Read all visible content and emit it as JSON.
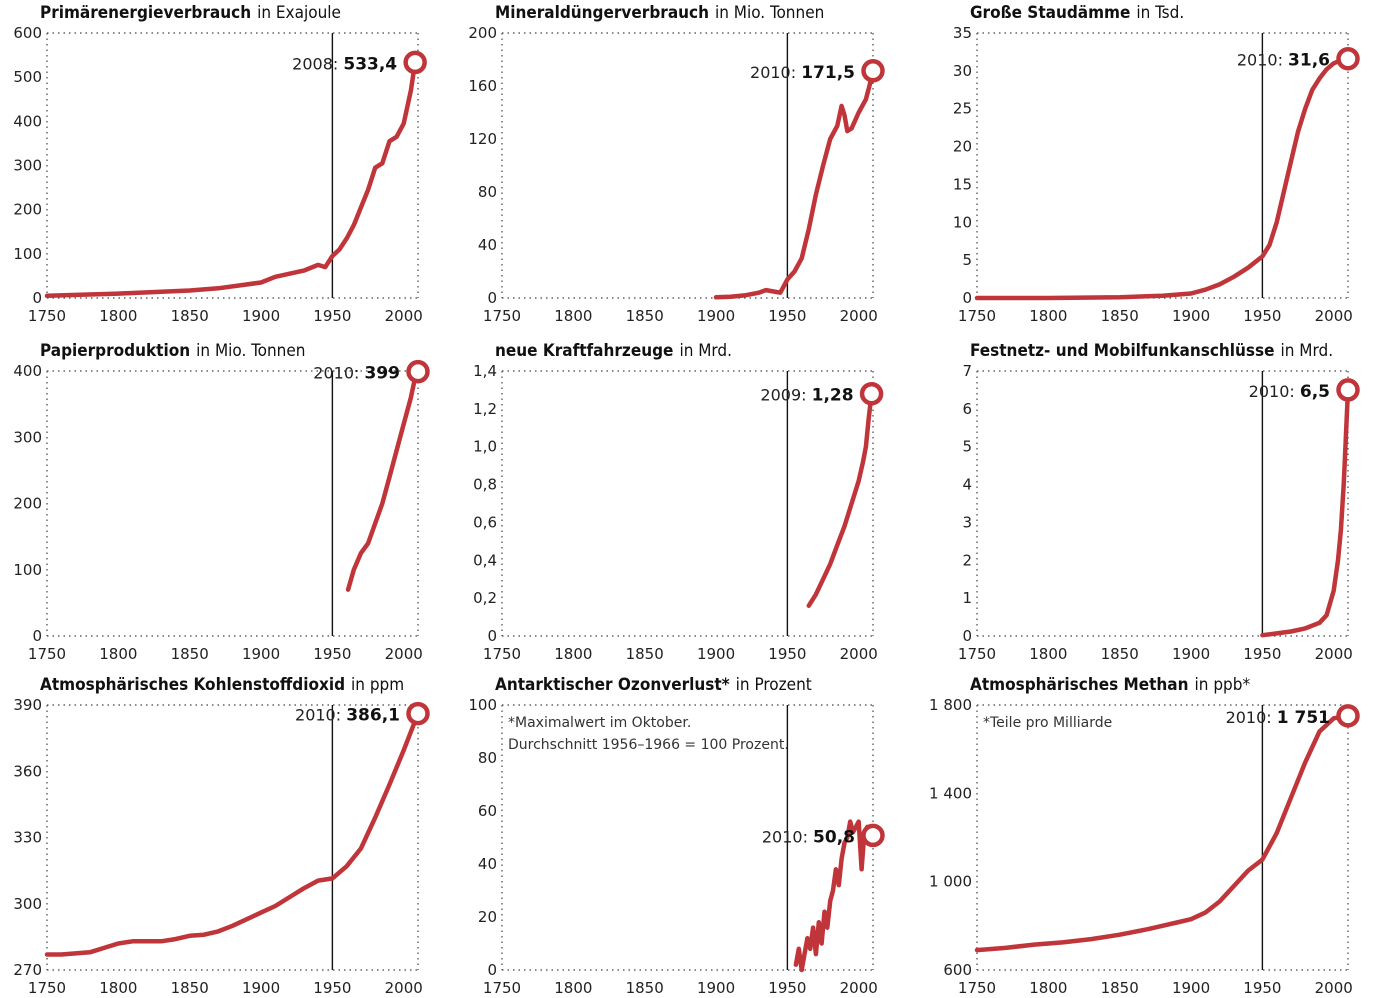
{
  "colors": {
    "line": "#c0353a",
    "ref": "#111111",
    "frame": "#444444"
  },
  "chart_data": [
    {
      "type": "line",
      "title": "Primärenergieverbrauch",
      "unit": "in Exajoule",
      "xlim": [
        1750,
        2008
      ],
      "ylim": [
        0,
        600
      ],
      "xticks": [
        1750,
        1800,
        1850,
        1900,
        1950,
        2000
      ],
      "yticks": [
        0,
        100,
        200,
        300,
        400,
        500,
        600
      ],
      "ytick_labels": [
        "0",
        "100",
        "200",
        "300",
        "400",
        "500",
        "600"
      ],
      "ref_year": 1950,
      "annotation": {
        "year": "2008",
        "value": "533,4"
      },
      "x": [
        1750,
        1800,
        1850,
        1870,
        1900,
        1910,
        1920,
        1930,
        1940,
        1945,
        1950,
        1955,
        1960,
        1965,
        1970,
        1975,
        1980,
        1985,
        1990,
        1995,
        2000,
        2005,
        2008
      ],
      "y": [
        5,
        10,
        17,
        22,
        35,
        48,
        55,
        62,
        75,
        70,
        95,
        110,
        135,
        165,
        205,
        245,
        295,
        305,
        355,
        365,
        395,
        470,
        533.4
      ]
    },
    {
      "type": "line",
      "title": "Mineraldüngerverbrauch",
      "unit": "in Mio. Tonnen",
      "xlim": [
        1750,
        2010
      ],
      "ylim": [
        0,
        200
      ],
      "xticks": [
        1750,
        1800,
        1850,
        1900,
        1950,
        2000
      ],
      "yticks": [
        0,
        40,
        80,
        120,
        160,
        200
      ],
      "ytick_labels": [
        "0",
        "40",
        "80",
        "120",
        "160",
        "200"
      ],
      "ref_year": 1950,
      "annotation": {
        "year": "2010",
        "value": "171,5"
      },
      "x": [
        1900,
        1910,
        1920,
        1930,
        1935,
        1940,
        1945,
        1950,
        1955,
        1960,
        1965,
        1970,
        1975,
        1980,
        1985,
        1988,
        1990,
        1992,
        1995,
        2000,
        2005,
        2008,
        2010
      ],
      "y": [
        0.5,
        1,
        2,
        4,
        6,
        5,
        4,
        14,
        20,
        30,
        52,
        78,
        100,
        120,
        130,
        145,
        138,
        126,
        128,
        140,
        150,
        162,
        171.5
      ]
    },
    {
      "type": "line",
      "title": "Große Staudämme",
      "unit": "in Tsd.",
      "xlim": [
        1750,
        2010
      ],
      "ylim": [
        0,
        35
      ],
      "xticks": [
        1750,
        1800,
        1850,
        1900,
        1950,
        2000
      ],
      "yticks": [
        0,
        5,
        10,
        15,
        20,
        25,
        30,
        35
      ],
      "ytick_labels": [
        "0",
        "5",
        "10",
        "15",
        "20",
        "25",
        "30",
        "35"
      ],
      "ref_year": 1950,
      "annotation": {
        "year": "2010",
        "value": "31,6"
      },
      "x": [
        1750,
        1800,
        1850,
        1880,
        1900,
        1910,
        1920,
        1930,
        1940,
        1950,
        1955,
        1960,
        1965,
        1970,
        1975,
        1980,
        1985,
        1990,
        1995,
        2000,
        2005,
        2010
      ],
      "y": [
        0,
        0,
        0.1,
        0.3,
        0.6,
        1.1,
        1.8,
        2.8,
        4,
        5.5,
        7,
        10,
        14,
        18,
        22,
        25,
        27.5,
        29,
        30.2,
        31,
        31.4,
        31.6
      ]
    },
    {
      "type": "line",
      "title": "Papierproduktion",
      "unit": "in Mio. Tonnen",
      "xlim": [
        1750,
        2010
      ],
      "ylim": [
        0,
        400
      ],
      "xticks": [
        1750,
        1800,
        1850,
        1900,
        1950,
        2000
      ],
      "yticks": [
        0,
        100,
        200,
        300,
        400
      ],
      "ytick_labels": [
        "0",
        "100",
        "200",
        "300",
        "400"
      ],
      "ref_year": 1950,
      "annotation": {
        "year": "2010",
        "value": "399"
      },
      "x": [
        1961,
        1965,
        1970,
        1975,
        1980,
        1985,
        1990,
        1995,
        2000,
        2005,
        2008,
        2010
      ],
      "y": [
        70,
        100,
        125,
        140,
        170,
        200,
        240,
        280,
        320,
        360,
        390,
        399
      ]
    },
    {
      "type": "line",
      "title": "neue Kraftfahrzeuge",
      "unit": "in Mrd.",
      "xlim": [
        1750,
        2009
      ],
      "ylim": [
        0,
        1.4
      ],
      "xticks": [
        1750,
        1800,
        1850,
        1900,
        1950,
        2000
      ],
      "yticks": [
        0,
        0.2,
        0.4,
        0.6,
        0.8,
        1.0,
        1.2,
        1.4
      ],
      "ytick_labels": [
        "0",
        "0,2",
        "0,4",
        "0,6",
        "0,8",
        "1,0",
        "1,2",
        "1,4"
      ],
      "ref_year": 1950,
      "annotation": {
        "year": "2009",
        "value": "1,28"
      },
      "x": [
        1965,
        1970,
        1975,
        1980,
        1985,
        1990,
        1995,
        2000,
        2003,
        2005,
        2007,
        2009
      ],
      "y": [
        0.16,
        0.22,
        0.3,
        0.38,
        0.48,
        0.58,
        0.7,
        0.82,
        0.92,
        1.0,
        1.15,
        1.28
      ]
    },
    {
      "type": "line",
      "title": "Festnetz- und Mobilfunkanschlüsse",
      "unit": "in Mrd.",
      "xlim": [
        1750,
        2010
      ],
      "ylim": [
        0,
        7
      ],
      "xticks": [
        1750,
        1800,
        1850,
        1900,
        1950,
        2000
      ],
      "yticks": [
        0,
        1,
        2,
        3,
        4,
        5,
        6,
        7
      ],
      "ytick_labels": [
        "0",
        "1",
        "2",
        "3",
        "4",
        "5",
        "6",
        "7"
      ],
      "ref_year": 1950,
      "annotation": {
        "year": "2010",
        "value": "6,5"
      },
      "x": [
        1950,
        1960,
        1970,
        1980,
        1990,
        1995,
        2000,
        2003,
        2005,
        2007,
        2008,
        2009,
        2010
      ],
      "y": [
        0.02,
        0.07,
        0.12,
        0.2,
        0.35,
        0.55,
        1.2,
        2,
        2.8,
        4,
        4.8,
        5.7,
        6.5
      ]
    },
    {
      "type": "line",
      "title": "Atmosphärisches Kohlenstoffdioxid",
      "unit": "in ppm",
      "xlim": [
        1750,
        2010
      ],
      "ylim": [
        270,
        390
      ],
      "xticks": [
        1750,
        1800,
        1850,
        1900,
        1950,
        2000
      ],
      "yticks": [
        270,
        300,
        330,
        360,
        390
      ],
      "ytick_labels": [
        "270",
        "300",
        "330",
        "360",
        "390"
      ],
      "ref_year": 1950,
      "annotation": {
        "year": "2010",
        "value": "386,1"
      },
      "x": [
        1750,
        1760,
        1770,
        1780,
        1790,
        1800,
        1810,
        1820,
        1830,
        1840,
        1850,
        1860,
        1870,
        1880,
        1890,
        1900,
        1910,
        1920,
        1930,
        1940,
        1945,
        1950,
        1960,
        1970,
        1980,
        1990,
        2000,
        2010
      ],
      "y": [
        277,
        277,
        277.5,
        278,
        280,
        282,
        283,
        283,
        283,
        284,
        285.5,
        286,
        287.5,
        290,
        293,
        296,
        299,
        303,
        307,
        310.5,
        311,
        311.5,
        317,
        325,
        339,
        354,
        369.5,
        386.1
      ]
    },
    {
      "type": "line",
      "title": "Antarktischer Ozonverlust*",
      "unit": "in Prozent",
      "xlim": [
        1750,
        2010
      ],
      "ylim": [
        0,
        100
      ],
      "xticks": [
        1750,
        1800,
        1850,
        1900,
        1950,
        2000
      ],
      "yticks": [
        0,
        20,
        40,
        60,
        80,
        100
      ],
      "ytick_labels": [
        "0",
        "20",
        "40",
        "60",
        "80",
        "100"
      ],
      "ref_year": 1950,
      "annotation": {
        "year": "2010",
        "value": "50,8"
      },
      "notes": [
        "*Maximalwert im Oktober.",
        "Durchschnitt 1956–1966 = 100 Prozent."
      ],
      "x": [
        1956,
        1958,
        1960,
        1962,
        1964,
        1966,
        1968,
        1970,
        1972,
        1974,
        1976,
        1978,
        1980,
        1982,
        1984,
        1986,
        1988,
        1990,
        1992,
        1994,
        1996,
        1998,
        2000,
        2002,
        2004,
        2006,
        2008,
        2010
      ],
      "y": [
        2,
        8,
        0,
        6,
        12,
        8,
        16,
        6,
        18,
        10,
        22,
        16,
        26,
        30,
        38,
        32,
        42,
        48,
        50,
        56,
        52,
        54,
        56,
        38,
        52,
        54,
        50,
        50.8
      ]
    },
    {
      "type": "line",
      "title": "Atmosphärisches Methan",
      "unit": "in ppb*",
      "xlim": [
        1750,
        2010
      ],
      "ylim": [
        600,
        1800
      ],
      "xticks": [
        1750,
        1800,
        1850,
        1900,
        1950,
        2000
      ],
      "yticks": [
        600,
        1000,
        1400,
        1800
      ],
      "ytick_labels": [
        "600",
        "1 000",
        "1 400",
        "1 800"
      ],
      "ref_year": 1950,
      "annotation": {
        "year": "2010",
        "value": "1 751"
      },
      "notes": [
        "*Teile pro Milliarde"
      ],
      "x": [
        1750,
        1770,
        1790,
        1810,
        1830,
        1850,
        1870,
        1880,
        1890,
        1900,
        1910,
        1920,
        1930,
        1940,
        1950,
        1960,
        1970,
        1980,
        1990,
        2000,
        2010
      ],
      "y": [
        690,
        700,
        715,
        725,
        740,
        760,
        785,
        800,
        815,
        830,
        860,
        910,
        980,
        1050,
        1100,
        1220,
        1380,
        1540,
        1680,
        1740,
        1751
      ]
    }
  ]
}
